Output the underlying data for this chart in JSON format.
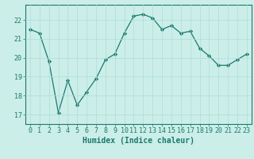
{
  "x": [
    0,
    1,
    2,
    3,
    4,
    5,
    6,
    7,
    8,
    9,
    10,
    11,
    12,
    13,
    14,
    15,
    16,
    17,
    18,
    19,
    20,
    21,
    22,
    23
  ],
  "y": [
    21.5,
    21.3,
    19.8,
    17.1,
    18.8,
    17.5,
    18.2,
    18.9,
    19.9,
    20.2,
    21.3,
    22.2,
    22.3,
    22.1,
    21.5,
    21.7,
    21.3,
    21.4,
    20.5,
    20.1,
    19.6,
    19.6,
    19.9,
    20.2
  ],
  "line_color": "#1a7a6e",
  "marker": "D",
  "marker_size": 2.2,
  "bg_color": "#cceee8",
  "grid_color": "#aaddda",
  "xlabel": "Humidex (Indice chaleur)",
  "xlim": [
    -0.5,
    23.5
  ],
  "ylim": [
    16.5,
    22.8
  ],
  "yticks": [
    17,
    18,
    19,
    20,
    21,
    22
  ],
  "xticks": [
    0,
    1,
    2,
    3,
    4,
    5,
    6,
    7,
    8,
    9,
    10,
    11,
    12,
    13,
    14,
    15,
    16,
    17,
    18,
    19,
    20,
    21,
    22,
    23
  ],
  "tick_label_fontsize": 6.0,
  "xlabel_fontsize": 7.0,
  "spine_color": "#1a7a6e",
  "tick_color": "#1a7a6e",
  "label_color": "#1a7a6e"
}
